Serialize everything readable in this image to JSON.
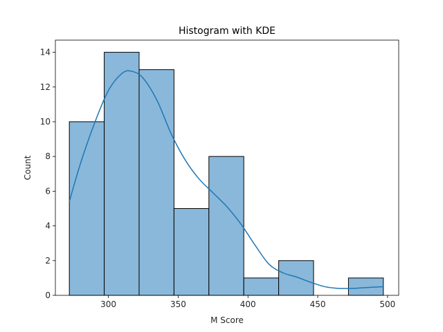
{
  "chart_data": {
    "type": "bar",
    "title": "Histogram with KDE",
    "xlabel": "M Score",
    "ylabel": "Count",
    "xlim": [
      262,
      508
    ],
    "ylim": [
      0,
      14.7
    ],
    "xticks": [
      300,
      350,
      400,
      450,
      500
    ],
    "yticks": [
      0,
      2,
      4,
      6,
      8,
      10,
      12,
      14
    ],
    "bins": [
      {
        "start": 272,
        "end": 297,
        "count": 10
      },
      {
        "start": 297,
        "end": 322,
        "count": 14
      },
      {
        "start": 322,
        "end": 347,
        "count": 13
      },
      {
        "start": 347,
        "end": 372,
        "count": 5
      },
      {
        "start": 372,
        "end": 397,
        "count": 8
      },
      {
        "start": 397,
        "end": 422,
        "count": 1
      },
      {
        "start": 422,
        "end": 447,
        "count": 2
      },
      {
        "start": 447,
        "end": 472,
        "count": 0
      },
      {
        "start": 472,
        "end": 497,
        "count": 1
      }
    ],
    "kde": {
      "x": [
        272,
        280,
        290,
        300,
        310,
        317,
        325,
        335,
        345,
        355,
        365,
        375,
        385,
        395,
        405,
        415,
        425,
        435,
        445,
        455,
        465,
        475,
        485,
        497
      ],
      "y": [
        5.4,
        7.6,
        9.9,
        11.8,
        12.8,
        12.9,
        12.5,
        11.2,
        9.3,
        7.8,
        6.7,
        5.9,
        5.1,
        4.1,
        2.9,
        1.8,
        1.3,
        1.05,
        0.75,
        0.5,
        0.4,
        0.4,
        0.45,
        0.5
      ]
    },
    "grid": false,
    "colors": {
      "bar_fill": "#8ab8da",
      "bar_edge": "#000000",
      "kde_line": "#1f77b4"
    }
  }
}
